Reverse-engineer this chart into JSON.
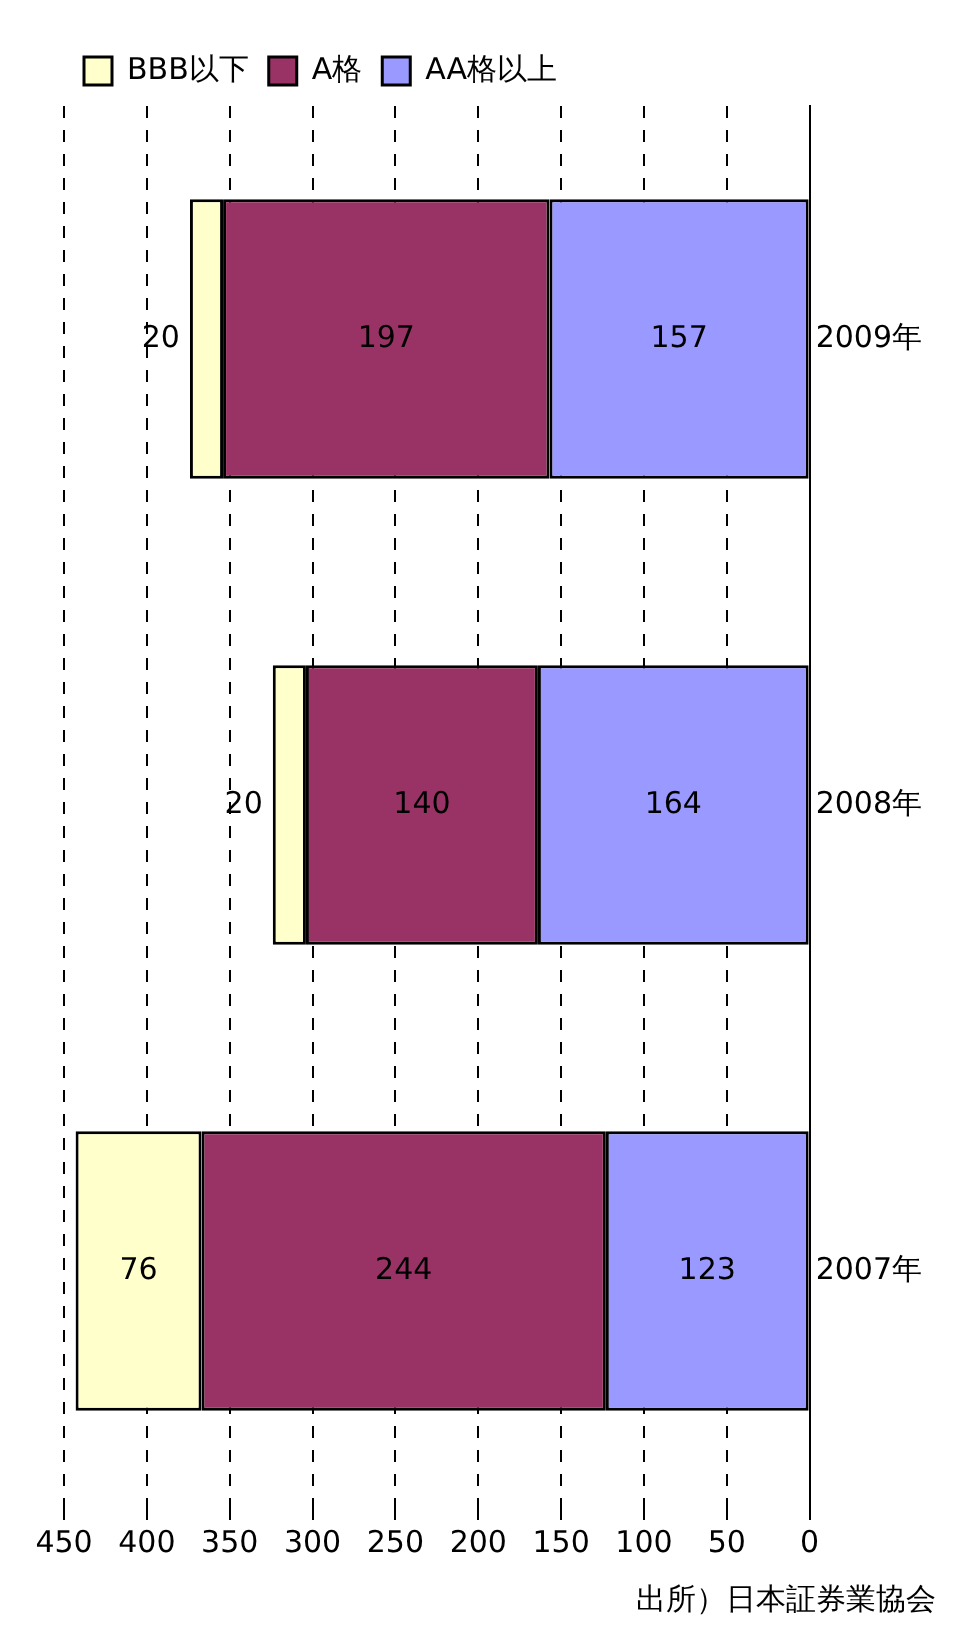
{
  "chart_data": {
    "type": "bar",
    "stacked": true,
    "orientation": "horizontal",
    "categories": [
      "2009年",
      "2008年",
      "2007年"
    ],
    "series": [
      {
        "name": "AA格以上",
        "color": "#9999ff",
        "values": [
          157,
          164,
          123
        ]
      },
      {
        "name": "A格",
        "color": "#993366",
        "values": [
          197,
          140,
          244
        ]
      },
      {
        "name": "BBB以下",
        "color": "#ffffcc",
        "values": [
          20,
          20,
          76
        ]
      }
    ],
    "xlim": [
      450,
      0
    ],
    "xticks": [
      0,
      50,
      100,
      150,
      200,
      250,
      300,
      350,
      400,
      450
    ],
    "grid": "x",
    "legend": "top left",
    "data_labels": true,
    "annotations": [
      "出所）日本証券業協会"
    ]
  }
}
